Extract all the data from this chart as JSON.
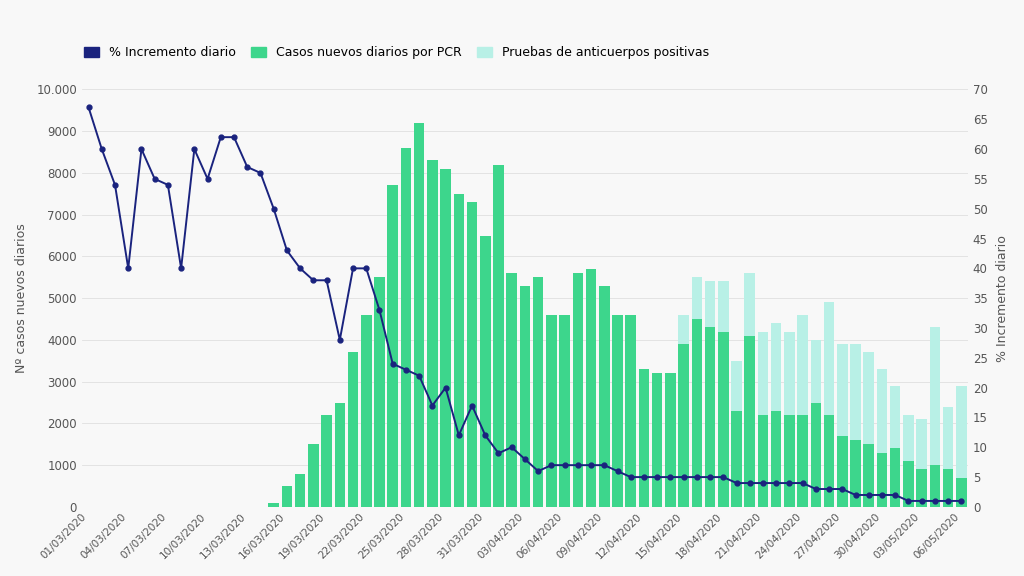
{
  "dates": [
    "01/03/2020",
    "02/03/2020",
    "03/03/2020",
    "04/03/2020",
    "05/03/2020",
    "06/03/2020",
    "07/03/2020",
    "08/03/2020",
    "09/03/2020",
    "10/03/2020",
    "11/03/2020",
    "12/03/2020",
    "13/03/2020",
    "14/03/2020",
    "15/03/2020",
    "16/03/2020",
    "17/03/2020",
    "18/03/2020",
    "19/03/2020",
    "20/03/2020",
    "21/03/2020",
    "22/03/2020",
    "23/03/2020",
    "24/03/2020",
    "25/03/2020",
    "26/03/2020",
    "27/03/2020",
    "28/03/2020",
    "29/03/2020",
    "30/03/2020",
    "31/03/2020",
    "01/04/2020",
    "02/04/2020",
    "03/04/2020",
    "04/04/2020",
    "05/04/2020",
    "06/04/2020",
    "07/04/2020",
    "08/04/2020",
    "09/04/2020",
    "10/04/2020",
    "11/04/2020",
    "12/04/2020",
    "13/04/2020",
    "14/04/2020",
    "15/04/2020",
    "16/04/2020",
    "17/04/2020",
    "18/04/2020",
    "19/04/2020",
    "20/04/2020",
    "21/04/2020",
    "22/04/2020",
    "23/04/2020",
    "24/04/2020",
    "25/04/2020",
    "26/04/2020",
    "27/04/2020",
    "28/04/2020",
    "29/04/2020",
    "30/04/2020",
    "01/05/2020",
    "02/05/2020",
    "03/05/2020",
    "04/05/2020",
    "05/05/2020",
    "06/05/2020"
  ],
  "pcr_cases": [
    0,
    0,
    0,
    0,
    0,
    0,
    0,
    0,
    0,
    0,
    0,
    0,
    0,
    0,
    100,
    500,
    800,
    1500,
    2200,
    2500,
    3700,
    4600,
    5500,
    7700,
    8600,
    9200,
    8300,
    8100,
    7500,
    7300,
    6500,
    8200,
    5600,
    5300,
    5500,
    4600,
    4600,
    5600,
    5700,
    5300,
    4600,
    4600,
    3300,
    3200,
    3200,
    3900,
    4500,
    4300,
    4200,
    2300,
    4100,
    2200,
    2300,
    2200,
    2200,
    2500,
    2200,
    1700,
    1600,
    1500,
    1300,
    1400,
    1100,
    900,
    1000,
    900,
    700
  ],
  "antibody_cases": [
    0,
    0,
    0,
    0,
    0,
    0,
    0,
    0,
    0,
    0,
    0,
    0,
    0,
    0,
    0,
    0,
    0,
    0,
    0,
    0,
    0,
    0,
    0,
    0,
    0,
    0,
    0,
    0,
    0,
    0,
    0,
    0,
    0,
    0,
    0,
    0,
    0,
    0,
    0,
    0,
    0,
    0,
    0,
    0,
    0,
    700,
    1000,
    1100,
    1200,
    1200,
    1500,
    2000,
    2100,
    2000,
    2400,
    1500,
    2700,
    2200,
    2300,
    2200,
    2000,
    1500,
    1100,
    1200,
    3300,
    1500,
    2200
  ],
  "pct_increment": [
    67,
    60,
    54,
    40,
    60,
    55,
    54,
    40,
    60,
    55,
    62,
    62,
    57,
    56,
    50,
    43,
    40,
    38,
    38,
    28,
    40,
    40,
    33,
    24,
    23,
    22,
    17,
    20,
    12,
    17,
    12,
    9,
    10,
    8,
    6,
    7,
    7,
    7,
    7,
    7,
    6,
    5,
    5,
    5,
    5,
    5,
    5,
    5,
    5,
    4,
    4,
    4,
    4,
    4,
    4,
    3,
    3,
    3,
    2,
    2,
    2,
    2,
    1,
    1,
    1,
    1,
    1
  ],
  "xtick_labels": [
    "01/03/2020",
    "04/03/2020",
    "07/03/2020",
    "10/03/2020",
    "13/03/2020",
    "16/03/2020",
    "19/03/2020",
    "22/03/2020",
    "25/03/2020",
    "28/03/2020",
    "31/03/2020",
    "03/04/2020",
    "06/04/2020",
    "09/04/2020",
    "12/04/2020",
    "15/04/2020",
    "18/04/2020",
    "21/04/2020",
    "24/04/2020",
    "27/04/2020",
    "30/04/2020",
    "03/05/2020",
    "06/05/2020"
  ],
  "bar_color_pcr": "#3dd68c",
  "bar_color_ab": "#b8f0e6",
  "line_color": "#1a237e",
  "background_color": "#f8f8f8",
  "ylabel_left": "Nº casos nuevos diarios",
  "ylabel_right": "% Incremento diario",
  "ylim_left": [
    0,
    10000
  ],
  "ylim_right": [
    0,
    70
  ],
  "yticks_left": [
    0,
    1000,
    2000,
    3000,
    4000,
    5000,
    6000,
    7000,
    8000,
    9000,
    10000
  ],
  "ytick_labels_left": [
    "0",
    "1000",
    "2000",
    "3000",
    "4000",
    "5000",
    "6000",
    "7000",
    "8000",
    "9000",
    "10.000"
  ],
  "yticks_right": [
    0,
    5,
    10,
    15,
    20,
    25,
    30,
    35,
    40,
    45,
    50,
    55,
    60,
    65,
    70
  ],
  "legend_items": [
    {
      "label": "% Incremento diario",
      "color": "#1a237e"
    },
    {
      "label": "Casos nuevos diarios por PCR",
      "color": "#3dd68c"
    },
    {
      "label": "Pruebas de anticuerpos positivas",
      "color": "#b8f0e6"
    }
  ]
}
